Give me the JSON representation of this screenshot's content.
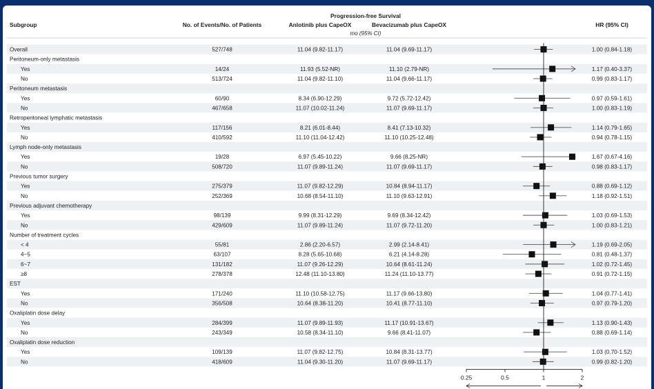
{
  "headers": {
    "subgroup": "Subgroup",
    "events": "No. of Events/No. of Patients",
    "pfs": "Progression-free Survival",
    "anlotinib": "Anlotinib plus CapeOX",
    "bevacizumab": "Bevacizumab plus CapeOX",
    "unit": "mo (95% CI)",
    "hr": "HR (95% CI)"
  },
  "chart_data": {
    "type": "forest",
    "x_axis": {
      "scale": "log",
      "range": [
        0.25,
        2
      ],
      "ticks": [
        "0.25",
        "0.5",
        "1",
        "2"
      ],
      "reference_line": 1
    },
    "rows": [
      {
        "label": "Overall",
        "kind": "item",
        "events": "527/748",
        "anlotinib": "11.04 (9.82-11.17)",
        "bevacizumab": "11.04 (9.69-11.17)",
        "hr_text": "1.00 (0.84-1.18)",
        "hr": 1.0,
        "lo": 0.84,
        "hi": 1.18
      },
      {
        "label": "Peritoneum-only metastasis",
        "kind": "group"
      },
      {
        "label": "Yes",
        "kind": "item",
        "events": "14/24",
        "anlotinib": "11.93 (5.52-NR)",
        "bevacizumab": "11.10 (2.79-NR)",
        "hr_text": "1.17 (0.40-3.37)",
        "hr": 1.17,
        "lo": 0.4,
        "hi": 3.37
      },
      {
        "label": "No",
        "kind": "item",
        "events": "513/724",
        "anlotinib": "11.04 (9.82-11.10)",
        "bevacizumab": "11.04 (9.66-11.17)",
        "hr_text": "0.99 (0.83-1.17)",
        "hr": 0.99,
        "lo": 0.83,
        "hi": 1.17
      },
      {
        "label": "Peritoneum metastasis",
        "kind": "group"
      },
      {
        "label": "Yes",
        "kind": "item",
        "events": "60/90",
        "anlotinib": "8.34 (6.90-12.29)",
        "bevacizumab": "9.72 (5.72-12.42)",
        "hr_text": "0.97 (0.59-1.61)",
        "hr": 0.97,
        "lo": 0.59,
        "hi": 1.61
      },
      {
        "label": "No",
        "kind": "item",
        "events": "467/658",
        "anlotinib": "11.07 (10.02-11.24)",
        "bevacizumab": "11.07 (9.69-11.17)",
        "hr_text": "1.00 (0.83-1.19)",
        "hr": 1.0,
        "lo": 0.83,
        "hi": 1.19
      },
      {
        "label": "Retroperitoneal lymphatic metastasis",
        "kind": "group"
      },
      {
        "label": "Yes",
        "kind": "item",
        "events": "117/156",
        "anlotinib": "8.21 (6.01-8.44)",
        "bevacizumab": "8.41 (7.13-10.32)",
        "hr_text": "1.14 (0.79-1.65)",
        "hr": 1.14,
        "lo": 0.79,
        "hi": 1.65
      },
      {
        "label": "No",
        "kind": "item",
        "events": "410/592",
        "anlotinib": "11.10 (11.04-12.42)",
        "bevacizumab": "11.10 (10.25-12.48)",
        "hr_text": "0.94 (0.78-1.15)",
        "hr": 0.94,
        "lo": 0.78,
        "hi": 1.15
      },
      {
        "label": "Lymph node-only metastasis",
        "kind": "group"
      },
      {
        "label": "Yes",
        "kind": "item",
        "events": "19/28",
        "anlotinib": "6.97 (5.45-10.22)",
        "bevacizumab": "9.66 (8.25-NR)",
        "hr_text": "1.67 (0.67-4.16)",
        "hr": 1.67,
        "lo": 0.67,
        "hi": 4.16
      },
      {
        "label": "No",
        "kind": "item",
        "events": "508/720",
        "anlotinib": "11.07 (9.89-11.24)",
        "bevacizumab": "11.07 (9.69-11.17)",
        "hr_text": "0.98 (0.83-1.17)",
        "hr": 0.98,
        "lo": 0.83,
        "hi": 1.17
      },
      {
        "label": "Previous tumor surgery",
        "kind": "group"
      },
      {
        "label": "Yes",
        "kind": "item",
        "events": "275/379",
        "anlotinib": "11.07 (9.82-12.29)",
        "bevacizumab": "10.84 (8.94-11.17)",
        "hr_text": "0.88 (0.69-1.12)",
        "hr": 0.88,
        "lo": 0.69,
        "hi": 1.12
      },
      {
        "label": "No",
        "kind": "item",
        "events": "252/369",
        "anlotinib": "10.68 (8.54-11.10)",
        "bevacizumab": "11.10 (9.63-12.91)",
        "hr_text": "1.18 (0.92-1.51)",
        "hr": 1.18,
        "lo": 0.92,
        "hi": 1.51
      },
      {
        "label": "Previous adjuvant chemotherapy",
        "kind": "group"
      },
      {
        "label": "Yes",
        "kind": "item",
        "events": "98/139",
        "anlotinib": "9.99 (8.31-12.29)",
        "bevacizumab": "9.69 (8.34-12.42)",
        "hr_text": "1.03 (0.69-1.53)",
        "hr": 1.03,
        "lo": 0.69,
        "hi": 1.53
      },
      {
        "label": "No",
        "kind": "item",
        "events": "429/609",
        "anlotinib": "11.07 (9.89-11.24)",
        "bevacizumab": "11.07 (9.72-11.20)",
        "hr_text": "1.00 (0.83-1.21)",
        "hr": 1.0,
        "lo": 0.83,
        "hi": 1.21
      },
      {
        "label": "Number of treatment cycles",
        "kind": "group"
      },
      {
        "label": "< 4",
        "kind": "item",
        "events": "55/81",
        "anlotinib": "2.86 (2.20-6.57)",
        "bevacizumab": "2.99 (2.14-8.41)",
        "hr_text": "1.19 (0.69-2.05)",
        "hr": 1.19,
        "lo": 0.69,
        "hi": 2.05
      },
      {
        "label": "4~5",
        "kind": "item",
        "events": "63/107",
        "anlotinib": "8.28 (5.65-10.68)",
        "bevacizumab": "6.21 (4.14-8.28)",
        "hr_text": "0.81 (0.48-1.37)",
        "hr": 0.81,
        "lo": 0.48,
        "hi": 1.37
      },
      {
        "label": "6~7",
        "kind": "item",
        "events": "131/182",
        "anlotinib": "11.07 (9.26-12.29)",
        "bevacizumab": "10.64 (8.61-11.24)",
        "hr_text": "1.02 (0.72-1.45)",
        "hr": 1.02,
        "lo": 0.72,
        "hi": 1.45
      },
      {
        "label": "≥8",
        "kind": "item",
        "events": "278/378",
        "anlotinib": "12.48 (11.10-13.80)",
        "bevacizumab": "11.24 (11.10-13.77)",
        "hr_text": "0.91 (0.72-1.15)",
        "hr": 0.91,
        "lo": 0.72,
        "hi": 1.15
      },
      {
        "label": "EST",
        "kind": "group"
      },
      {
        "label": "Yes",
        "kind": "item",
        "events": "171/240",
        "anlotinib": "11.10 (10.58-12.75)",
        "bevacizumab": "11.17 (9.66-13.80)",
        "hr_text": "1.04 (0.77-1.41)",
        "hr": 1.04,
        "lo": 0.77,
        "hi": 1.41
      },
      {
        "label": "No",
        "kind": "item",
        "events": "356/508",
        "anlotinib": "10.64 (8.38-11.20)",
        "bevacizumab": "10.41 (8.77-11.10)",
        "hr_text": "0.97 (0.79-1.20)",
        "hr": 0.97,
        "lo": 0.79,
        "hi": 1.2
      },
      {
        "label": "Oxaliplatin dose delay",
        "kind": "group"
      },
      {
        "label": "Yes",
        "kind": "item",
        "events": "284/399",
        "anlotinib": "11.07 (9.89-11.93)",
        "bevacizumab": "11.17 (10.91-13.67)",
        "hr_text": "1.13 (0.90-1.43)",
        "hr": 1.13,
        "lo": 0.9,
        "hi": 1.43
      },
      {
        "label": "No",
        "kind": "item",
        "events": "243/349",
        "anlotinib": "10.58 (8.34-11.10)",
        "bevacizumab": "9.66 (8.41-11.07)",
        "hr_text": "0.88 (0.69-1.14)",
        "hr": 0.88,
        "lo": 0.69,
        "hi": 1.14
      },
      {
        "label": "Oxaliplatin dose reduction",
        "kind": "group"
      },
      {
        "label": "Yes",
        "kind": "item",
        "events": "109/139",
        "anlotinib": "11.07 (9.82-12.75)",
        "bevacizumab": "10.84 (8.31-13.77)",
        "hr_text": "1.03 (0.70-1.52)",
        "hr": 1.03,
        "lo": 0.7,
        "hi": 1.52
      },
      {
        "label": "No",
        "kind": "item",
        "events": "418/609",
        "anlotinib": "11.04 (9.30-11.20)",
        "bevacizumab": "11.07 (9.69-11.17)",
        "hr_text": "0.99 (0.82-1.20)",
        "hr": 0.99,
        "lo": 0.82,
        "hi": 1.2
      }
    ]
  },
  "colors": {
    "frame": "#0a2f6e",
    "panel": "#ffffff",
    "zebra": "#eef1f4",
    "marker": "#111111",
    "ci_line": "#555555",
    "axis": "#222222"
  }
}
